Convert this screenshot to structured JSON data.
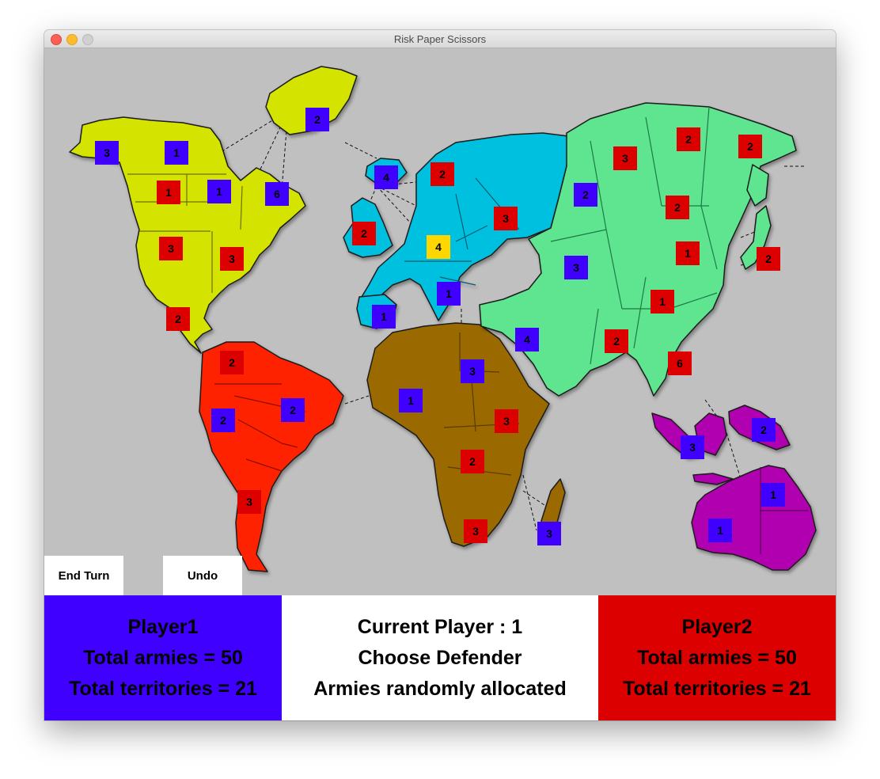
{
  "window": {
    "title": "Risk Paper Scissors",
    "controls": [
      "close",
      "minimize",
      "zoom"
    ]
  },
  "colors": {
    "player1": "#3f00ff",
    "player2": "#dd0000",
    "selected": "#ffd700",
    "background": "#c0c0c0",
    "north_america": "#d4e400",
    "south_america": "#ff2200",
    "europe": "#00c0e0",
    "africa": "#9a6a00",
    "asia": "#5fe590",
    "australia": "#b000b0"
  },
  "continents": [
    "north-america",
    "south-america",
    "europe",
    "africa",
    "asia",
    "australia"
  ],
  "territories": [
    {
      "name": "alaska",
      "owner": "player1",
      "armies": "3"
    },
    {
      "name": "northwest-territory",
      "owner": "player1",
      "armies": "1"
    },
    {
      "name": "greenland",
      "owner": "player1",
      "armies": "2"
    },
    {
      "name": "alberta",
      "owner": "player2",
      "armies": "1"
    },
    {
      "name": "ontario",
      "owner": "player1",
      "armies": "1"
    },
    {
      "name": "quebec",
      "owner": "player1",
      "armies": "6"
    },
    {
      "name": "western-us",
      "owner": "player2",
      "armies": "3"
    },
    {
      "name": "eastern-us",
      "owner": "player2",
      "armies": "3"
    },
    {
      "name": "central-america",
      "owner": "player2",
      "armies": "2"
    },
    {
      "name": "venezuela",
      "owner": "player2",
      "armies": "2"
    },
    {
      "name": "peru",
      "owner": "player1",
      "armies": "2"
    },
    {
      "name": "brazil",
      "owner": "player1",
      "armies": "2"
    },
    {
      "name": "argentina",
      "owner": "player2",
      "armies": "3"
    },
    {
      "name": "iceland",
      "owner": "player1",
      "armies": "4"
    },
    {
      "name": "scandinavia",
      "owner": "player2",
      "armies": "2"
    },
    {
      "name": "great-britain",
      "owner": "player2",
      "armies": "2"
    },
    {
      "name": "northern-europe",
      "owner": "selected",
      "armies": "4"
    },
    {
      "name": "ukraine",
      "owner": "player2",
      "armies": "3"
    },
    {
      "name": "western-europe",
      "owner": "player1",
      "armies": "1"
    },
    {
      "name": "southern-europe",
      "owner": "player1",
      "armies": "1"
    },
    {
      "name": "north-africa",
      "owner": "player1",
      "armies": "1"
    },
    {
      "name": "egypt",
      "owner": "player1",
      "armies": "3"
    },
    {
      "name": "east-africa",
      "owner": "player2",
      "armies": "3"
    },
    {
      "name": "congo",
      "owner": "player2",
      "armies": "2"
    },
    {
      "name": "south-africa",
      "owner": "player2",
      "armies": "3"
    },
    {
      "name": "madagascar",
      "owner": "player1",
      "armies": "3"
    },
    {
      "name": "ural",
      "owner": "player1",
      "armies": "2"
    },
    {
      "name": "siberia",
      "owner": "player2",
      "armies": "3"
    },
    {
      "name": "yakutsk",
      "owner": "player2",
      "armies": "2"
    },
    {
      "name": "kamchatka",
      "owner": "player2",
      "armies": "2"
    },
    {
      "name": "irkutsk",
      "owner": "player2",
      "armies": "2"
    },
    {
      "name": "mongolia",
      "owner": "player2",
      "armies": "1"
    },
    {
      "name": "japan",
      "owner": "player2",
      "armies": "2"
    },
    {
      "name": "afghanistan",
      "owner": "player1",
      "armies": "3"
    },
    {
      "name": "china",
      "owner": "player2",
      "armies": "1"
    },
    {
      "name": "middle-east",
      "owner": "player1",
      "armies": "4"
    },
    {
      "name": "india",
      "owner": "player2",
      "armies": "2"
    },
    {
      "name": "siam",
      "owner": "player2",
      "armies": "6"
    },
    {
      "name": "indonesia",
      "owner": "player1",
      "armies": "3"
    },
    {
      "name": "new-guinea",
      "owner": "player1",
      "armies": "2"
    },
    {
      "name": "western-australia",
      "owner": "player1",
      "armies": "1"
    },
    {
      "name": "eastern-australia",
      "owner": "player1",
      "armies": "1"
    }
  ],
  "buttons": {
    "end_turn": "End Turn",
    "undo": "Undo"
  },
  "player1": {
    "name": "Player1",
    "armies_text": "Total armies = 50",
    "territories_text": "Total territories = 21"
  },
  "status": {
    "current_player": "Current Player : 1",
    "phase": "Choose Defender",
    "message": "Armies randomly allocated"
  },
  "player2": {
    "name": "Player2",
    "armies_text": "Total armies = 50",
    "territories_text": "Total territories = 21"
  }
}
